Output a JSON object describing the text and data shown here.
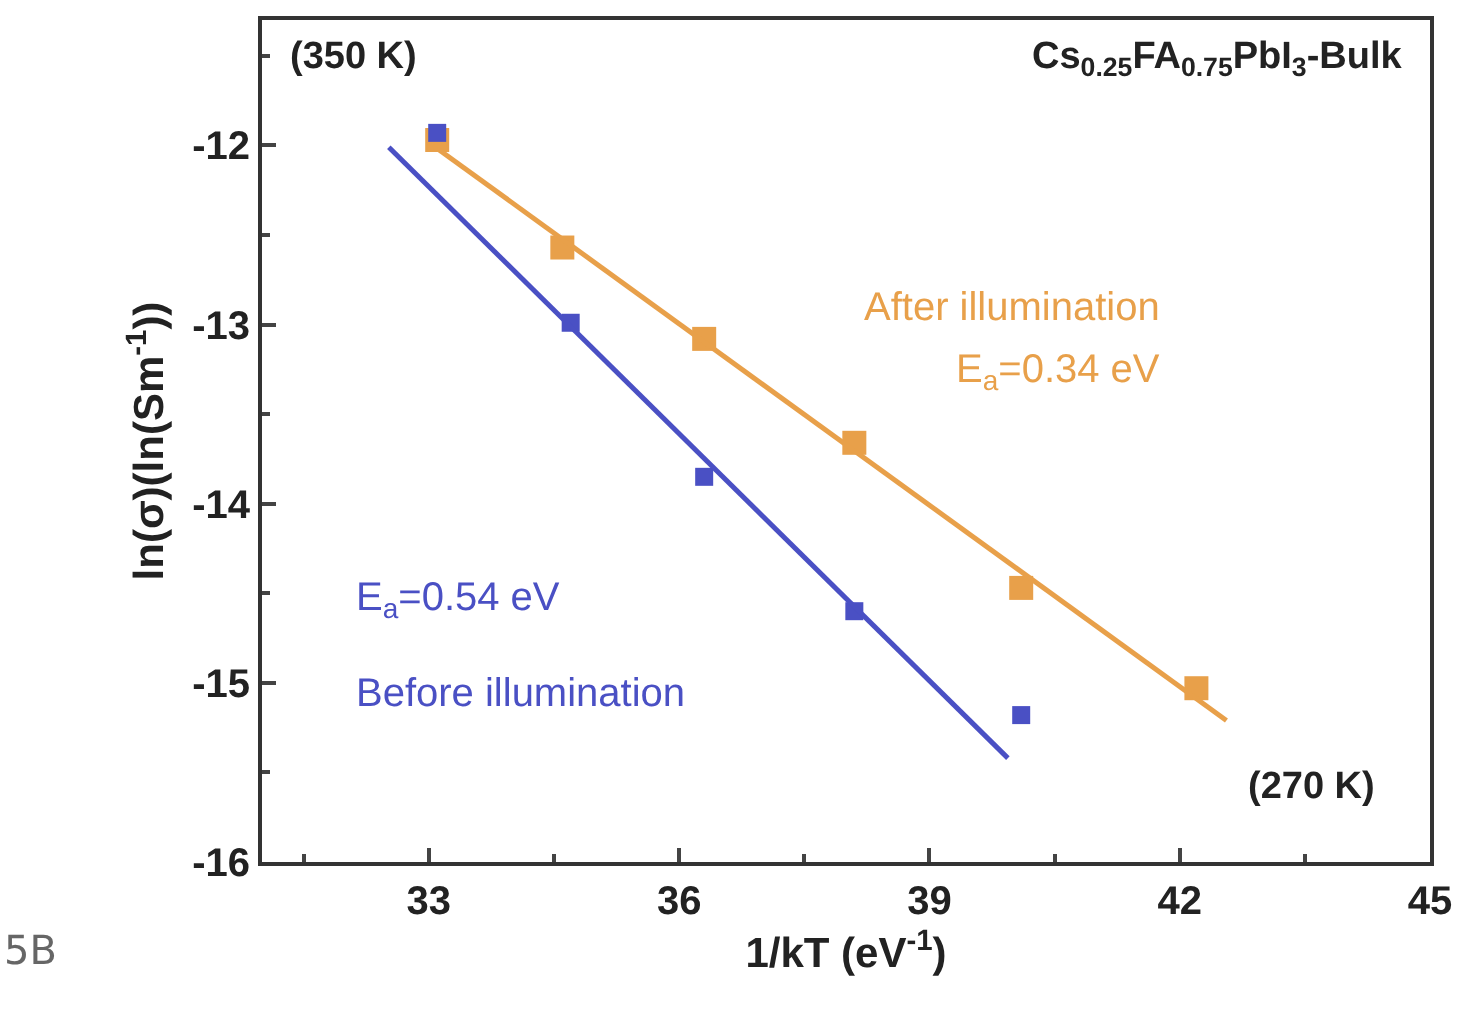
{
  "chart_data": {
    "type": "scatter",
    "title": "Cs$_{0.25}$FA$_{0.75}$PbI$_{3}$-Bulk",
    "xlabel": "1/kT (eV$^{-1}$)",
    "ylabel": "ln(σ)(ln(Sm$^{-1}$))",
    "xlim": [
      31,
      45
    ],
    "xticks": [
      33,
      36,
      39,
      42,
      45
    ],
    "ylim": [
      -16,
      -11.3
    ],
    "yticks": [
      -16,
      -15,
      -14,
      -13,
      -12
    ],
    "grid": false,
    "legend": false,
    "marker": "square",
    "series": [
      {
        "color": "#e8a04a",
        "x": [
          33.1,
          34.6,
          36.3,
          38.1,
          40.1,
          42.2
        ],
        "values": [
          -11.97,
          -12.57,
          -13.08,
          -13.66,
          -14.47,
          -15.03
        ]
      },
      {
        "color": "#4a50c4",
        "x": [
          33.1,
          34.7,
          36.3,
          38.1,
          40.1
        ],
        "values": [
          -11.93,
          -12.99,
          -13.85,
          -14.6,
          -15.18
        ]
      },
      {
        "type": "line",
        "marker": "none",
        "color": "#e8a04a",
        "x": [
          33.05,
          42.56
        ],
        "values": [
          -12.0,
          -15.21
        ]
      },
      {
        "type": "line",
        "marker": "none",
        "color": "#4a50c4",
        "x": [
          32.52,
          39.94
        ],
        "values": [
          -12.01,
          -15.42
        ]
      }
    ],
    "annotations": [
      "(350 K)",
      "(270 K)",
      "After illumination",
      "E$_{a}$=0.34 eV",
      "E$_{a}$=0.54 eV",
      "Before illumination",
      "5B"
    ]
  }
}
